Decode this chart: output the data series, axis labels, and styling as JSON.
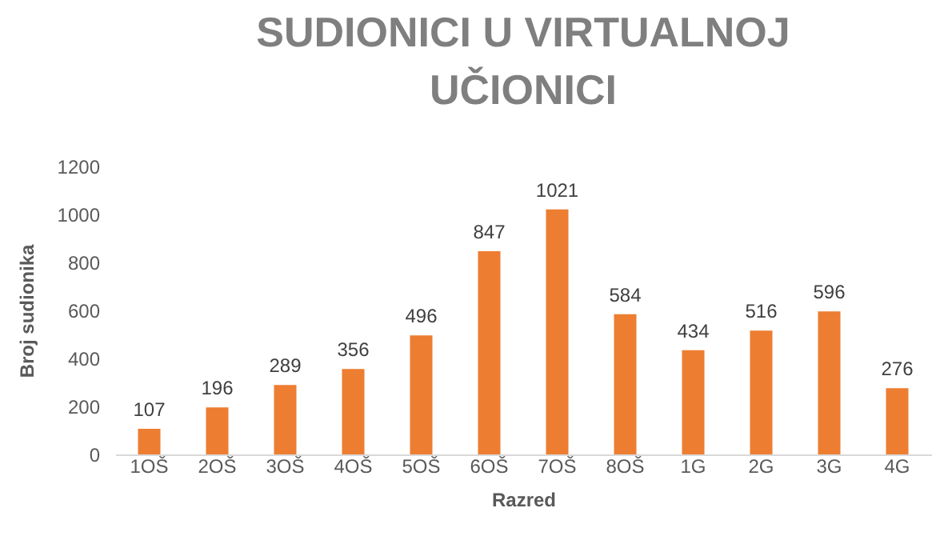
{
  "chart_data": {
    "type": "bar",
    "title": "SUDIONICI U VIRTUALNOJ UČIONICI",
    "xlabel": "Razred",
    "ylabel": "Broj sudionika",
    "categories": [
      "1OŠ",
      "2OŠ",
      "3OŠ",
      "4OŠ",
      "5OŠ",
      "6OŠ",
      "7OŠ",
      "8OŠ",
      "1G",
      "2G",
      "3G",
      "4G"
    ],
    "values": [
      107,
      196,
      289,
      356,
      496,
      847,
      1021,
      584,
      434,
      516,
      596,
      276
    ],
    "color": "#ed7d31",
    "ylim": [
      0,
      1200
    ],
    "yticks": [
      0,
      200,
      400,
      600,
      800,
      1000,
      1200
    ],
    "data_labels": true,
    "grid": false
  }
}
